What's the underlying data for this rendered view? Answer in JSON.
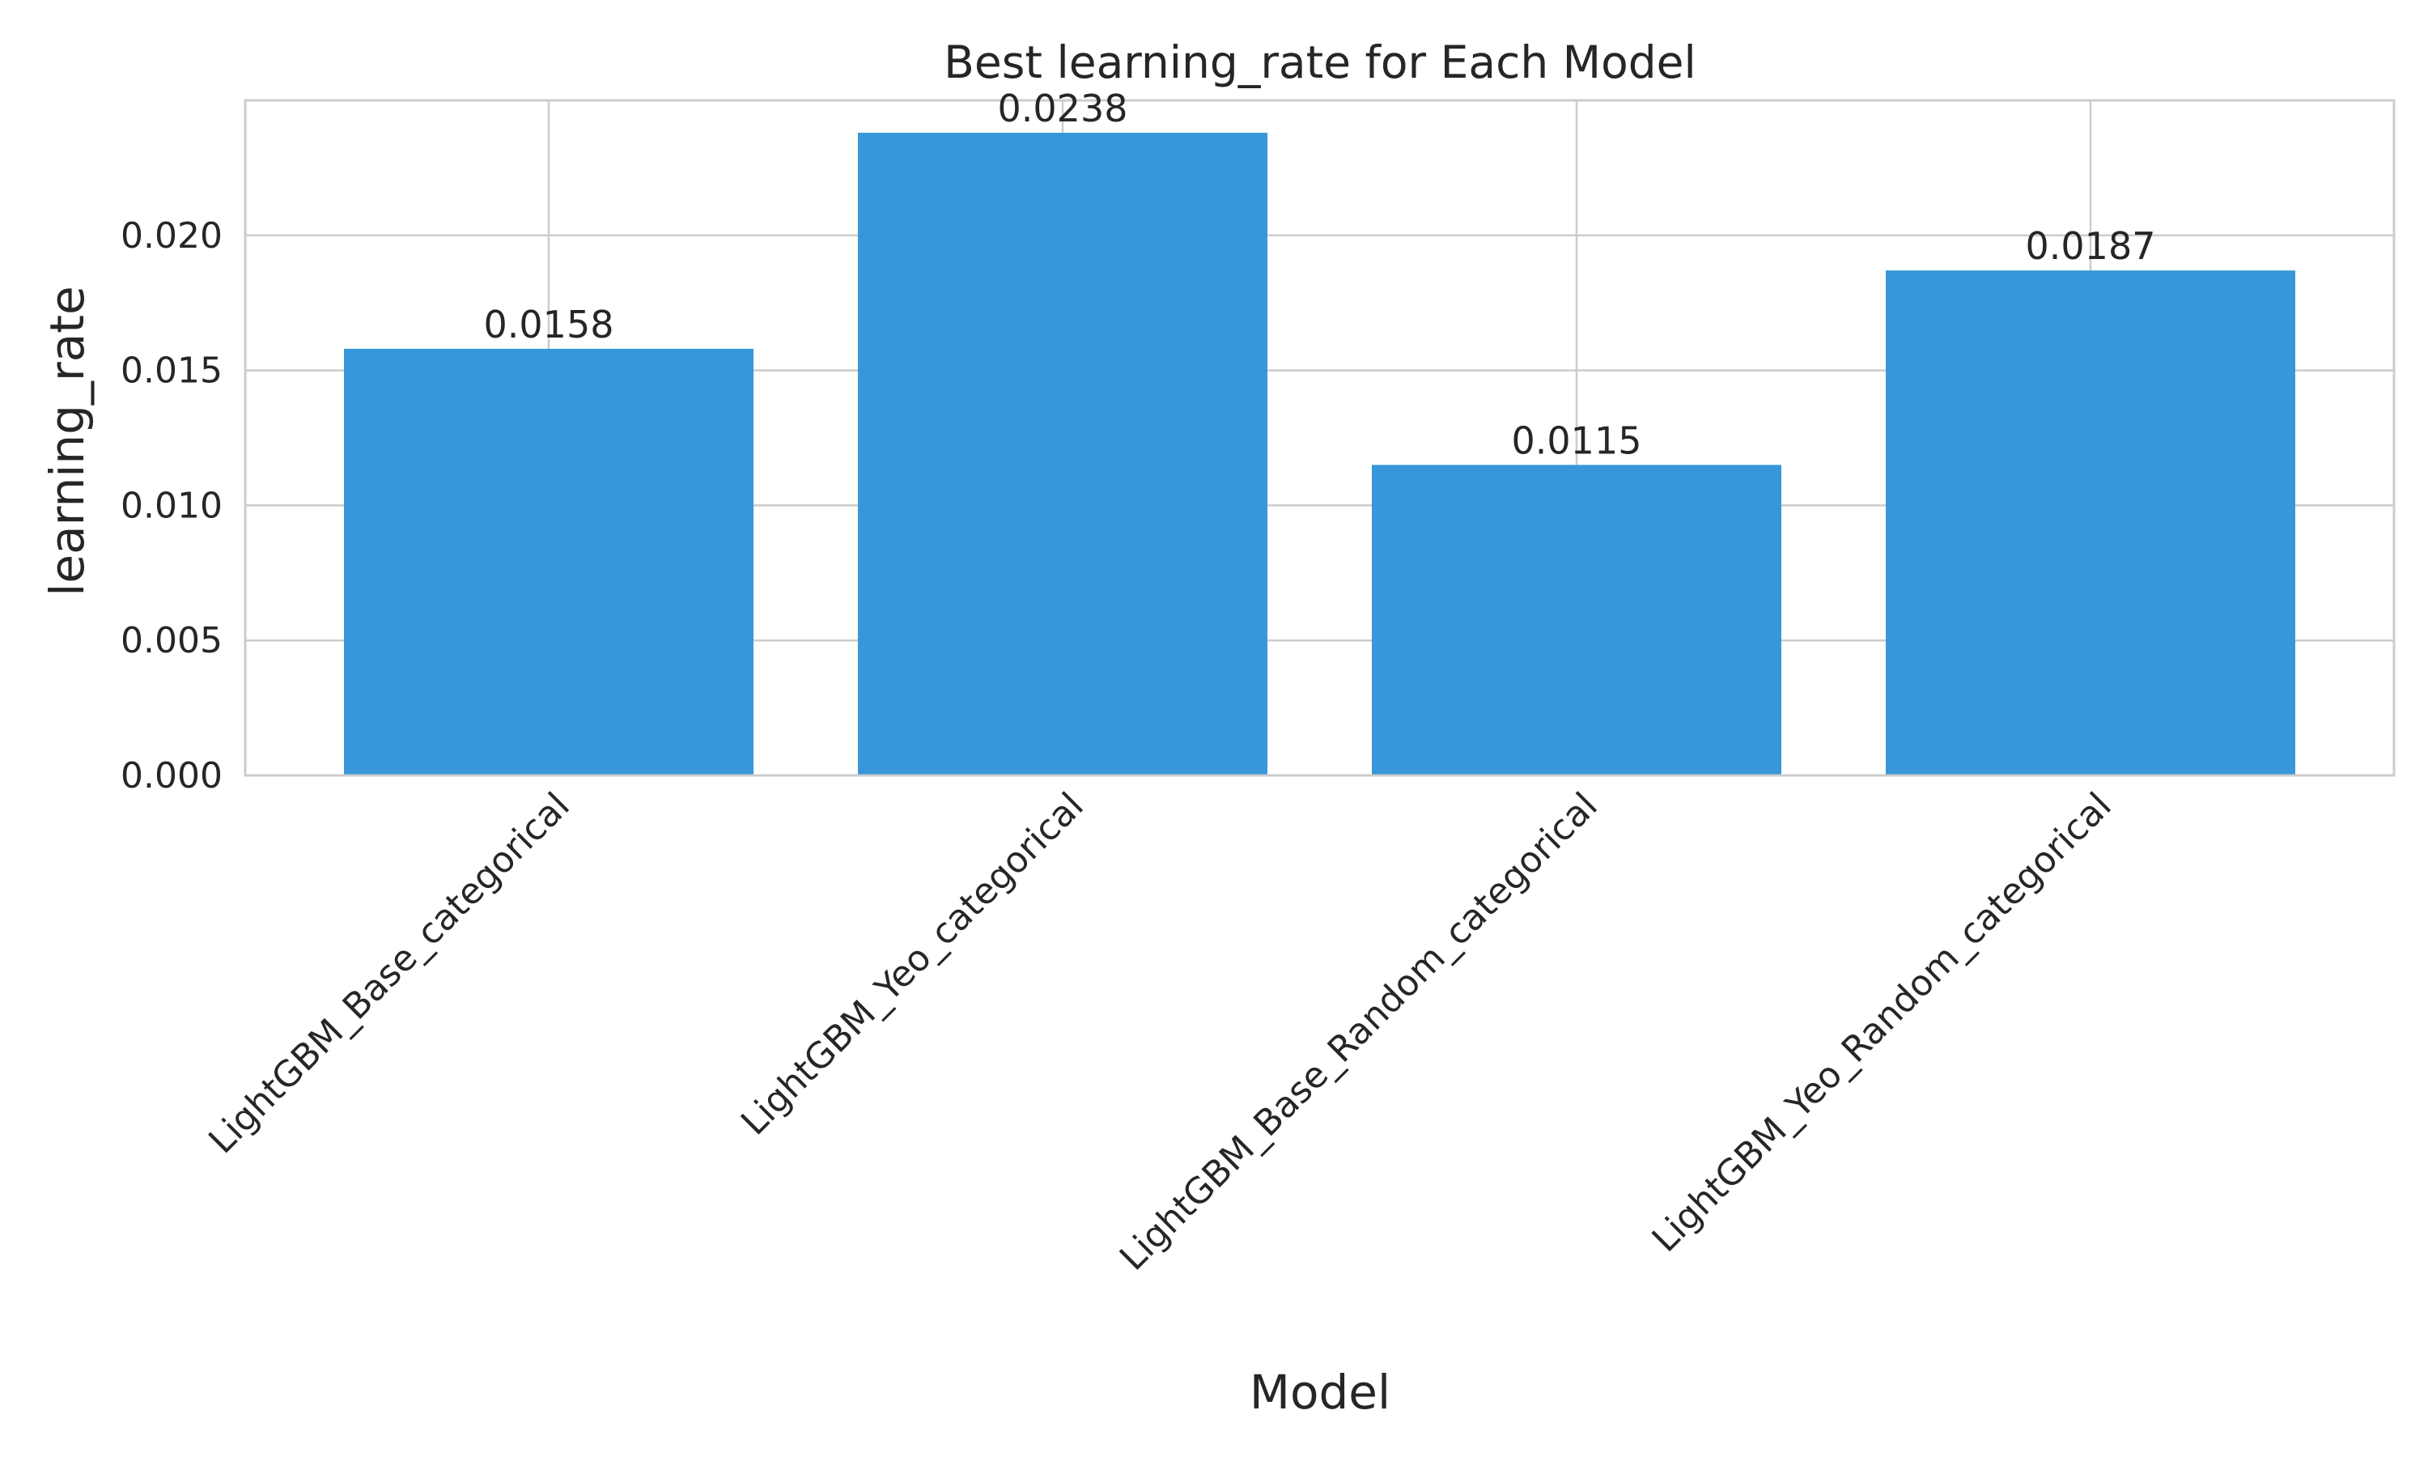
{
  "chart_data": {
    "type": "bar",
    "title": "Best learning_rate for Each Model",
    "xlabel": "Model",
    "ylabel": "learning_rate",
    "categories": [
      "LightGBM_Base_categorical",
      "LightGBM_Yeo_categorical",
      "LightGBM_Base_Random_categorical",
      "LightGBM_Yeo_Random_categorical"
    ],
    "values": [
      0.0158,
      0.0238,
      0.0115,
      0.0187
    ],
    "value_labels": [
      "0.0158",
      "0.0238",
      "0.0115",
      "0.0187"
    ],
    "yticks": [
      0.0,
      0.005,
      0.01,
      0.015,
      0.02
    ],
    "ytick_labels": [
      "0.000",
      "0.005",
      "0.010",
      "0.015",
      "0.020"
    ],
    "ylim": [
      0,
      0.025
    ],
    "grid": true,
    "bar_color": "#3797da",
    "grid_color": "#cccccc",
    "spine_color": "#cccccc",
    "text_color": "#262626",
    "background": "#ffffff"
  }
}
